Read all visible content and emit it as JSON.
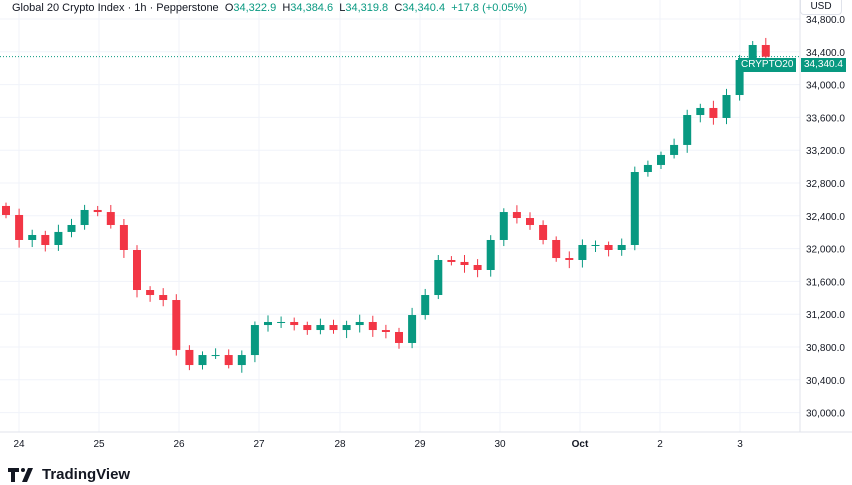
{
  "header": {
    "symbol": "Global 20 Crypto Index · 1h · Pepperstone",
    "o_label": "O",
    "o": "34,322.9",
    "h_label": "H",
    "h": "34,384.6",
    "l_label": "L",
    "l": "34,319.8",
    "c_label": "C",
    "c": "34,340.4",
    "change": "+17.8 (+0.05%)"
  },
  "currency": "USD",
  "ticker_label": "CRYPTO20",
  "last_price_label": "34,340.4",
  "brand": "TradingView",
  "colors": {
    "up": "#089981",
    "down": "#f23645",
    "grid": "#f0f3fa",
    "text": "#131722"
  },
  "chart_data": {
    "type": "candlestick",
    "interval_note": "approximate 4h aggregation of 1h chart",
    "ylim": [
      29800,
      34900
    ],
    "yticks": [
      34800,
      34400,
      34000,
      33600,
      33200,
      32800,
      32400,
      32000,
      31600,
      31200,
      30800,
      30400,
      30000
    ],
    "ytick_labels": [
      "34,800.0",
      "34,400.0",
      "34,000.0",
      "33,600.0",
      "33,200.0",
      "32,800.0",
      "32,400.0",
      "32,000.0",
      "31,600.0",
      "31,200.0",
      "30,800.0",
      "30,400.0",
      "30,000.0"
    ],
    "xtick_labels": [
      "24",
      "25",
      "26",
      "27",
      "28",
      "29",
      "30",
      "Oct",
      "2",
      "3"
    ],
    "first_open": 32520,
    "closes": [
      32410,
      32105,
      32166,
      32044,
      32203,
      32288,
      32471,
      32446,
      32288,
      31983,
      31495,
      31434,
      31373,
      30764,
      30580,
      30702,
      30702,
      30580,
      30702,
      31068,
      31105,
      31105,
      31068,
      31007,
      31068,
      31007,
      31068,
      31105,
      31007,
      30983,
      30849,
      31190,
      31434,
      31861,
      31837,
      31800,
      31739,
      32105,
      32446,
      32373,
      32288,
      32105,
      31885,
      31861,
      32044,
      32044,
      31983,
      32044,
      32934,
      33020,
      33142,
      33264,
      33629,
      33715,
      33593,
      33873,
      34300,
      34483,
      34340
    ],
    "last_price": 34340.4
  }
}
